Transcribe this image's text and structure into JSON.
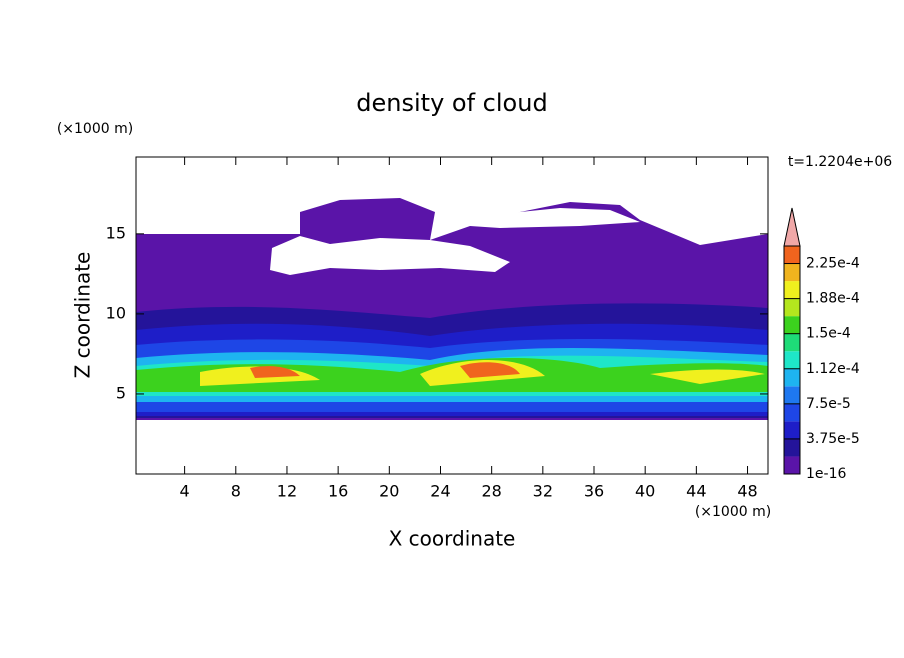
{
  "chart_data": {
    "type": "contour",
    "title": "density of cloud",
    "x_label": "X coordinate",
    "y_label": "Z coordinate",
    "x_unit": "(×1000 m)",
    "y_unit": "(×1000 m)",
    "time_label": "t=1.2204e+06",
    "xlim": [
      0.2,
      49.6
    ],
    "xticks": [
      4,
      8,
      12,
      16,
      20,
      24,
      28,
      32,
      36,
      40,
      44,
      48
    ],
    "ylim": [
      0,
      19.8
    ],
    "yticks": [
      5,
      10,
      15
    ],
    "colorbar": {
      "clim": [
        1e-16,
        0.00024375
      ],
      "levels": [
        {
          "value": 1e-16,
          "label": "1e-16"
        },
        {
          "value": 3.75e-05,
          "label": "3.75e-5"
        },
        {
          "value": 7.5e-05,
          "label": "7.5e-5"
        },
        {
          "value": 0.0001125,
          "label": "1.12e-4"
        },
        {
          "value": 0.00015,
          "label": "1.5e-4"
        },
        {
          "value": 0.0001875,
          "label": "1.88e-4"
        },
        {
          "value": 0.000225,
          "label": "2.25e-4"
        }
      ],
      "colors": [
        "#5a14a8",
        "#24149a",
        "#1e1ec8",
        "#1e46e6",
        "#1e78f0",
        "#1eb4f0",
        "#1ee6c8",
        "#1edc78",
        "#3cd21e",
        "#b4e61e",
        "#f0f01e",
        "#f0b41e",
        "#f0641e"
      ],
      "extend_color": "#f0a8a8"
    }
  }
}
